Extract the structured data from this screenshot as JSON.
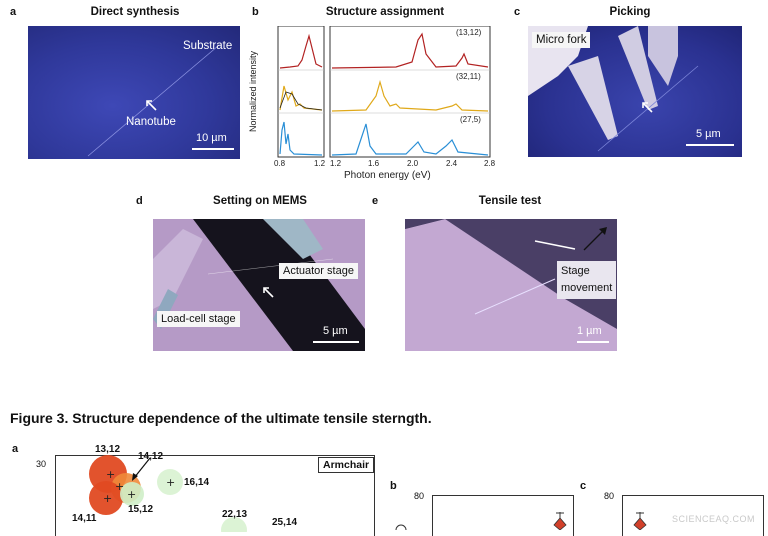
{
  "panels": {
    "a": {
      "label": "a",
      "title": "Direct synthesis",
      "substrate": "Substrate",
      "nanotube": "Nanotube",
      "scale": "10 µm"
    },
    "b": {
      "label": "b",
      "title": "Structure assignment",
      "ylabel": "Normalized intensity",
      "xlabel": "Photon energy (eV)",
      "left_ticks": [
        "0.8",
        "1.2"
      ],
      "right_ticks": [
        "1.2",
        "1.6",
        "2.0",
        "2.4",
        "2.8"
      ],
      "traces": [
        "(13,12)",
        "(32,11)",
        "(27,5)"
      ],
      "colors": [
        "#b22222",
        "#e0a91a",
        "#2a8fd6"
      ]
    },
    "c": {
      "label": "c",
      "title": "Picking",
      "tool": "Micro fork",
      "scale": "5 µm"
    },
    "d": {
      "label": "d",
      "title": "Setting on MEMS",
      "actuator": "Actuator stage",
      "loadcell": "Load-cell stage",
      "scale": "5 µm"
    },
    "e": {
      "label": "e",
      "title": "Tensile test",
      "stage": "Stage",
      "movement": "movement",
      "scale": "1 µm"
    }
  },
  "caption": "Figure 3. Structure dependence of the ultimate tensile sterngth.",
  "lower": {
    "a_label": "a",
    "y_tick": "30",
    "chirality": [
      "13,12",
      "14,12",
      "16,14",
      "14,11",
      "15,12",
      "22,13",
      "25,14"
    ],
    "legend": "Armchair",
    "b_label": "b",
    "b_tick": "80",
    "c_label": "c",
    "c_tick": "80"
  },
  "watermark": "SCIENCEAQ.COM"
}
